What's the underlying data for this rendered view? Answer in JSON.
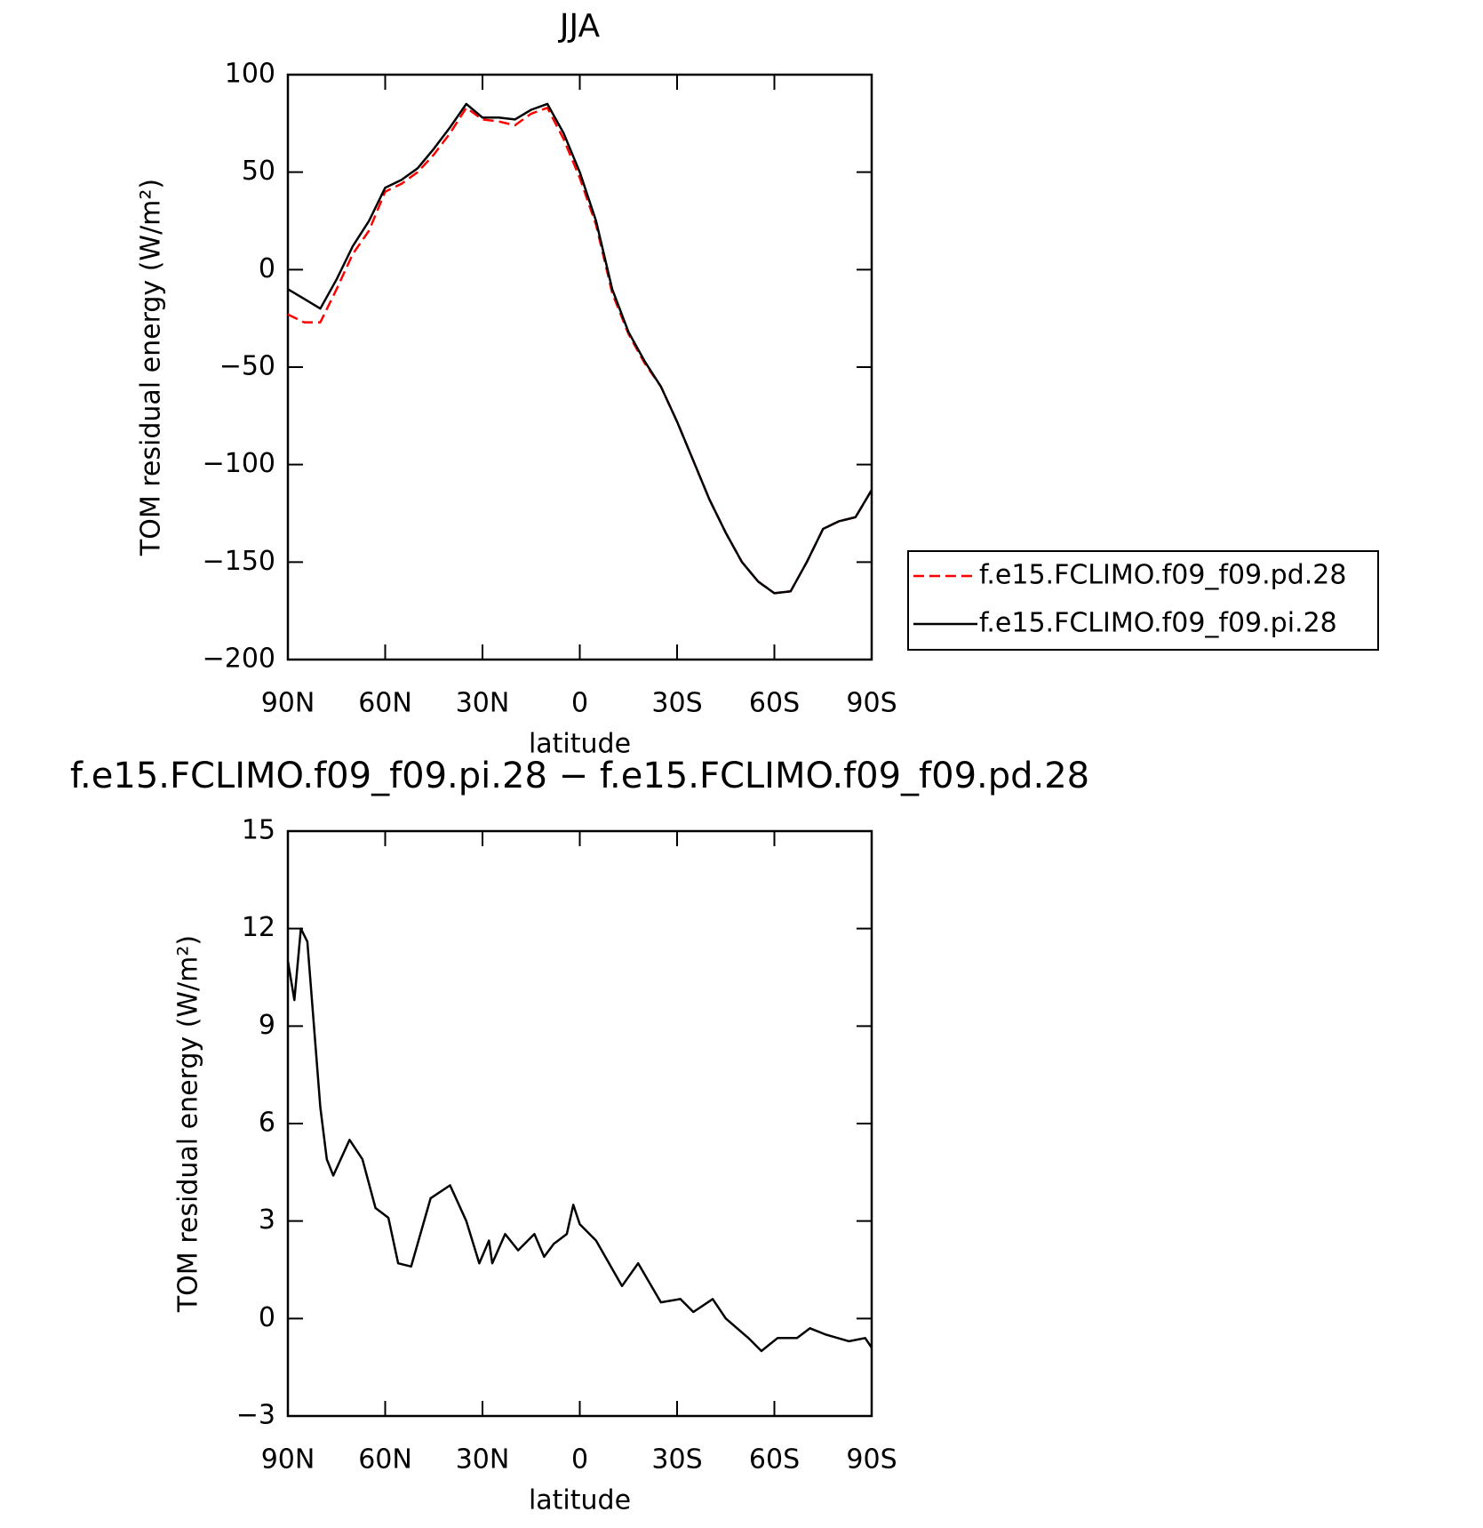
{
  "chart_data": [
    {
      "type": "line",
      "title": "JJA",
      "x_label": "latitude",
      "y_label": "TOM residual energy (W/m²)",
      "x": [
        90,
        85,
        80,
        75,
        70,
        65,
        60,
        55,
        50,
        45,
        40,
        35,
        30,
        25,
        20,
        15,
        10,
        5,
        0,
        -5,
        -10,
        -15,
        -20,
        -25,
        -30,
        -35,
        -40,
        -45,
        -50,
        -55,
        -60,
        -65,
        -70,
        -75,
        -80,
        -85,
        -90
      ],
      "series": [
        {
          "name": "f.e15.FCLIMO.f09_f09.pd.28",
          "color": "#ff0000",
          "dash": true,
          "values": [
            -23,
            -27,
            -27,
            -10,
            8,
            20,
            40,
            44,
            50,
            59,
            70,
            83,
            77,
            76,
            74,
            80,
            83,
            67,
            47,
            23,
            -12,
            -33,
            -48,
            -60,
            -78,
            -98,
            -118,
            -135,
            -150,
            -160,
            -166,
            -165,
            -150,
            -133,
            -129,
            -127,
            -113
          ]
        },
        {
          "name": "f.e15.FCLIMO.f09_f09.pi.28",
          "color": "#000000",
          "dash": false,
          "values": [
            -10,
            -15,
            -20,
            -5,
            12,
            25,
            42,
            46,
            52,
            62,
            73,
            85,
            78,
            78,
            77,
            82,
            85,
            70,
            50,
            25,
            -10,
            -32,
            -47,
            -60,
            -78,
            -98,
            -118,
            -135,
            -150,
            -160,
            -166,
            -165,
            -150,
            -133,
            -129,
            -127,
            -113
          ]
        }
      ],
      "xlim": [
        90,
        -90
      ],
      "xticks": [
        {
          "value": 90,
          "label": "90N"
        },
        {
          "value": 60,
          "label": "60N"
        },
        {
          "value": 30,
          "label": "30N"
        },
        0,
        {
          "value": -30,
          "label": "30S"
        },
        {
          "value": -60,
          "label": "60S"
        },
        {
          "value": -90,
          "label": "90S"
        }
      ],
      "ylim": [
        -200,
        100
      ],
      "yticks": [
        {
          "value": -200,
          "label": "−200"
        },
        {
          "value": -150,
          "label": "−150"
        },
        {
          "value": -100,
          "label": "−100"
        },
        {
          "value": -50,
          "label": "−50"
        },
        0,
        50,
        100
      ],
      "legend": "outside-right"
    },
    {
      "type": "line",
      "title": "f.e15.FCLIMO.f09_f09.pi.28 − f.e15.FCLIMO.f09_f09.pd.28",
      "x_label": "latitude",
      "y_label": "TOM residual energy (W/m²)",
      "x": [
        90,
        88,
        86,
        84,
        80,
        78,
        76,
        71,
        67,
        63,
        59,
        56,
        52,
        46,
        40,
        35,
        31,
        28,
        27,
        23,
        19,
        14,
        11,
        8,
        4,
        2,
        0,
        -5,
        -13,
        -18,
        -25,
        -31,
        -35,
        -41,
        -45,
        -52,
        -56,
        -61,
        -67,
        -71,
        -76,
        -83,
        -88,
        -90
      ],
      "series": [
        {
          "color": "#000000",
          "dash": false,
          "values": [
            11,
            9.8,
            12,
            11.6,
            6.5,
            4.9,
            4.4,
            5.5,
            4.9,
            3.4,
            3.1,
            1.7,
            1.6,
            3.7,
            4.1,
            3.0,
            1.7,
            2.4,
            1.7,
            2.6,
            2.1,
            2.6,
            1.9,
            2.3,
            2.6,
            3.5,
            2.9,
            2.4,
            1.0,
            1.7,
            0.5,
            0.6,
            0.2,
            0.6,
            0,
            -0.6,
            -1.0,
            -0.6,
            -0.6,
            -0.3,
            -0.5,
            -0.7,
            -0.6,
            -0.9
          ]
        }
      ],
      "xlim": [
        90,
        -90
      ],
      "xticks": [
        {
          "value": 90,
          "label": "90N"
        },
        {
          "value": 60,
          "label": "60N"
        },
        {
          "value": 30,
          "label": "30N"
        },
        0,
        {
          "value": -30,
          "label": "30S"
        },
        {
          "value": -60,
          "label": "60S"
        },
        {
          "value": -90,
          "label": "90S"
        }
      ],
      "ylim": [
        -3,
        15
      ],
      "yticks": [
        {
          "value": -3,
          "label": "−3"
        },
        0,
        3,
        6,
        9,
        12,
        15
      ]
    }
  ]
}
